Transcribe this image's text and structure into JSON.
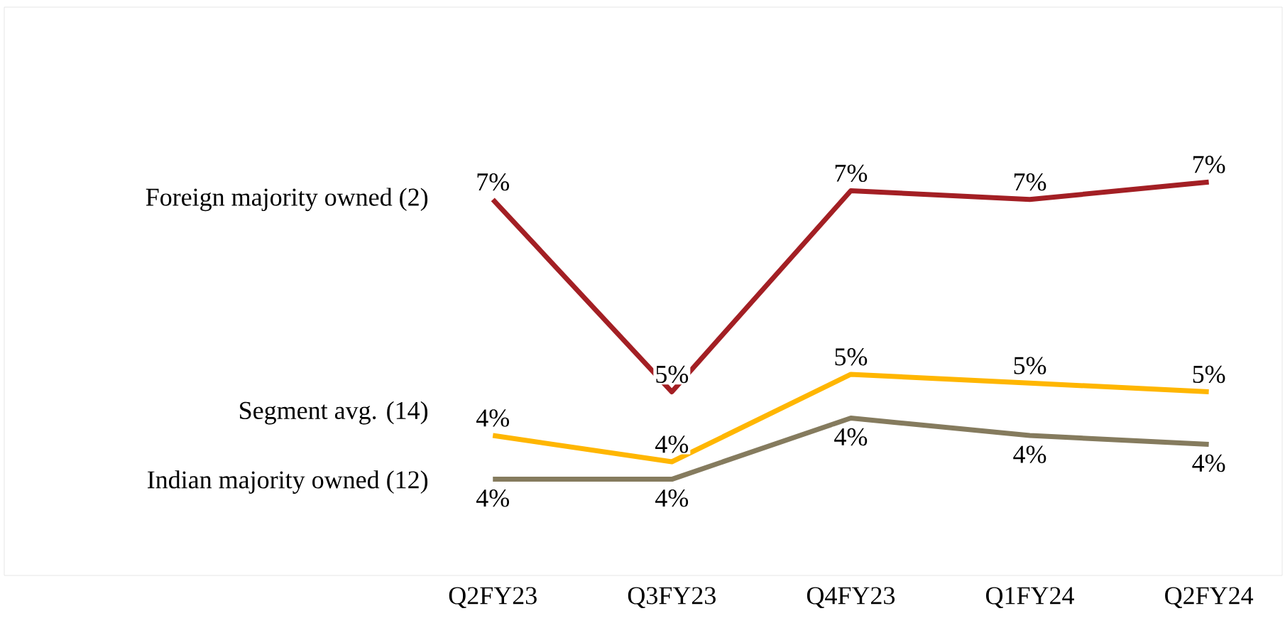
{
  "chart_data": {
    "type": "line",
    "categories": [
      "Q2FY23",
      "Q3FY23",
      "Q4FY23",
      "Q1FY24",
      "Q2FY24"
    ],
    "series": [
      {
        "name": "Foreign majority owned (2)",
        "color": "#a31f24",
        "values": [
          6.8,
          4.6,
          6.9,
          6.8,
          7.0
        ],
        "value_labels": [
          "7%",
          "5%",
          "7%",
          "7%",
          "7%"
        ]
      },
      {
        "name": "Segment avg. (14)",
        "color": "#ffb600",
        "values": [
          4.1,
          3.8,
          4.8,
          4.7,
          4.6
        ],
        "value_labels": [
          "4%",
          "4%",
          "5%",
          "5%",
          "5%"
        ]
      },
      {
        "name": "Indian majority owned (12)",
        "color": "#857b5e",
        "values": [
          3.6,
          3.6,
          4.3,
          4.1,
          4.0
        ],
        "value_labels": [
          "4%",
          "4%",
          "4%",
          "4%",
          "4%"
        ]
      }
    ],
    "grid": false,
    "legend": false,
    "marker": "none",
    "line_style": "solid"
  }
}
